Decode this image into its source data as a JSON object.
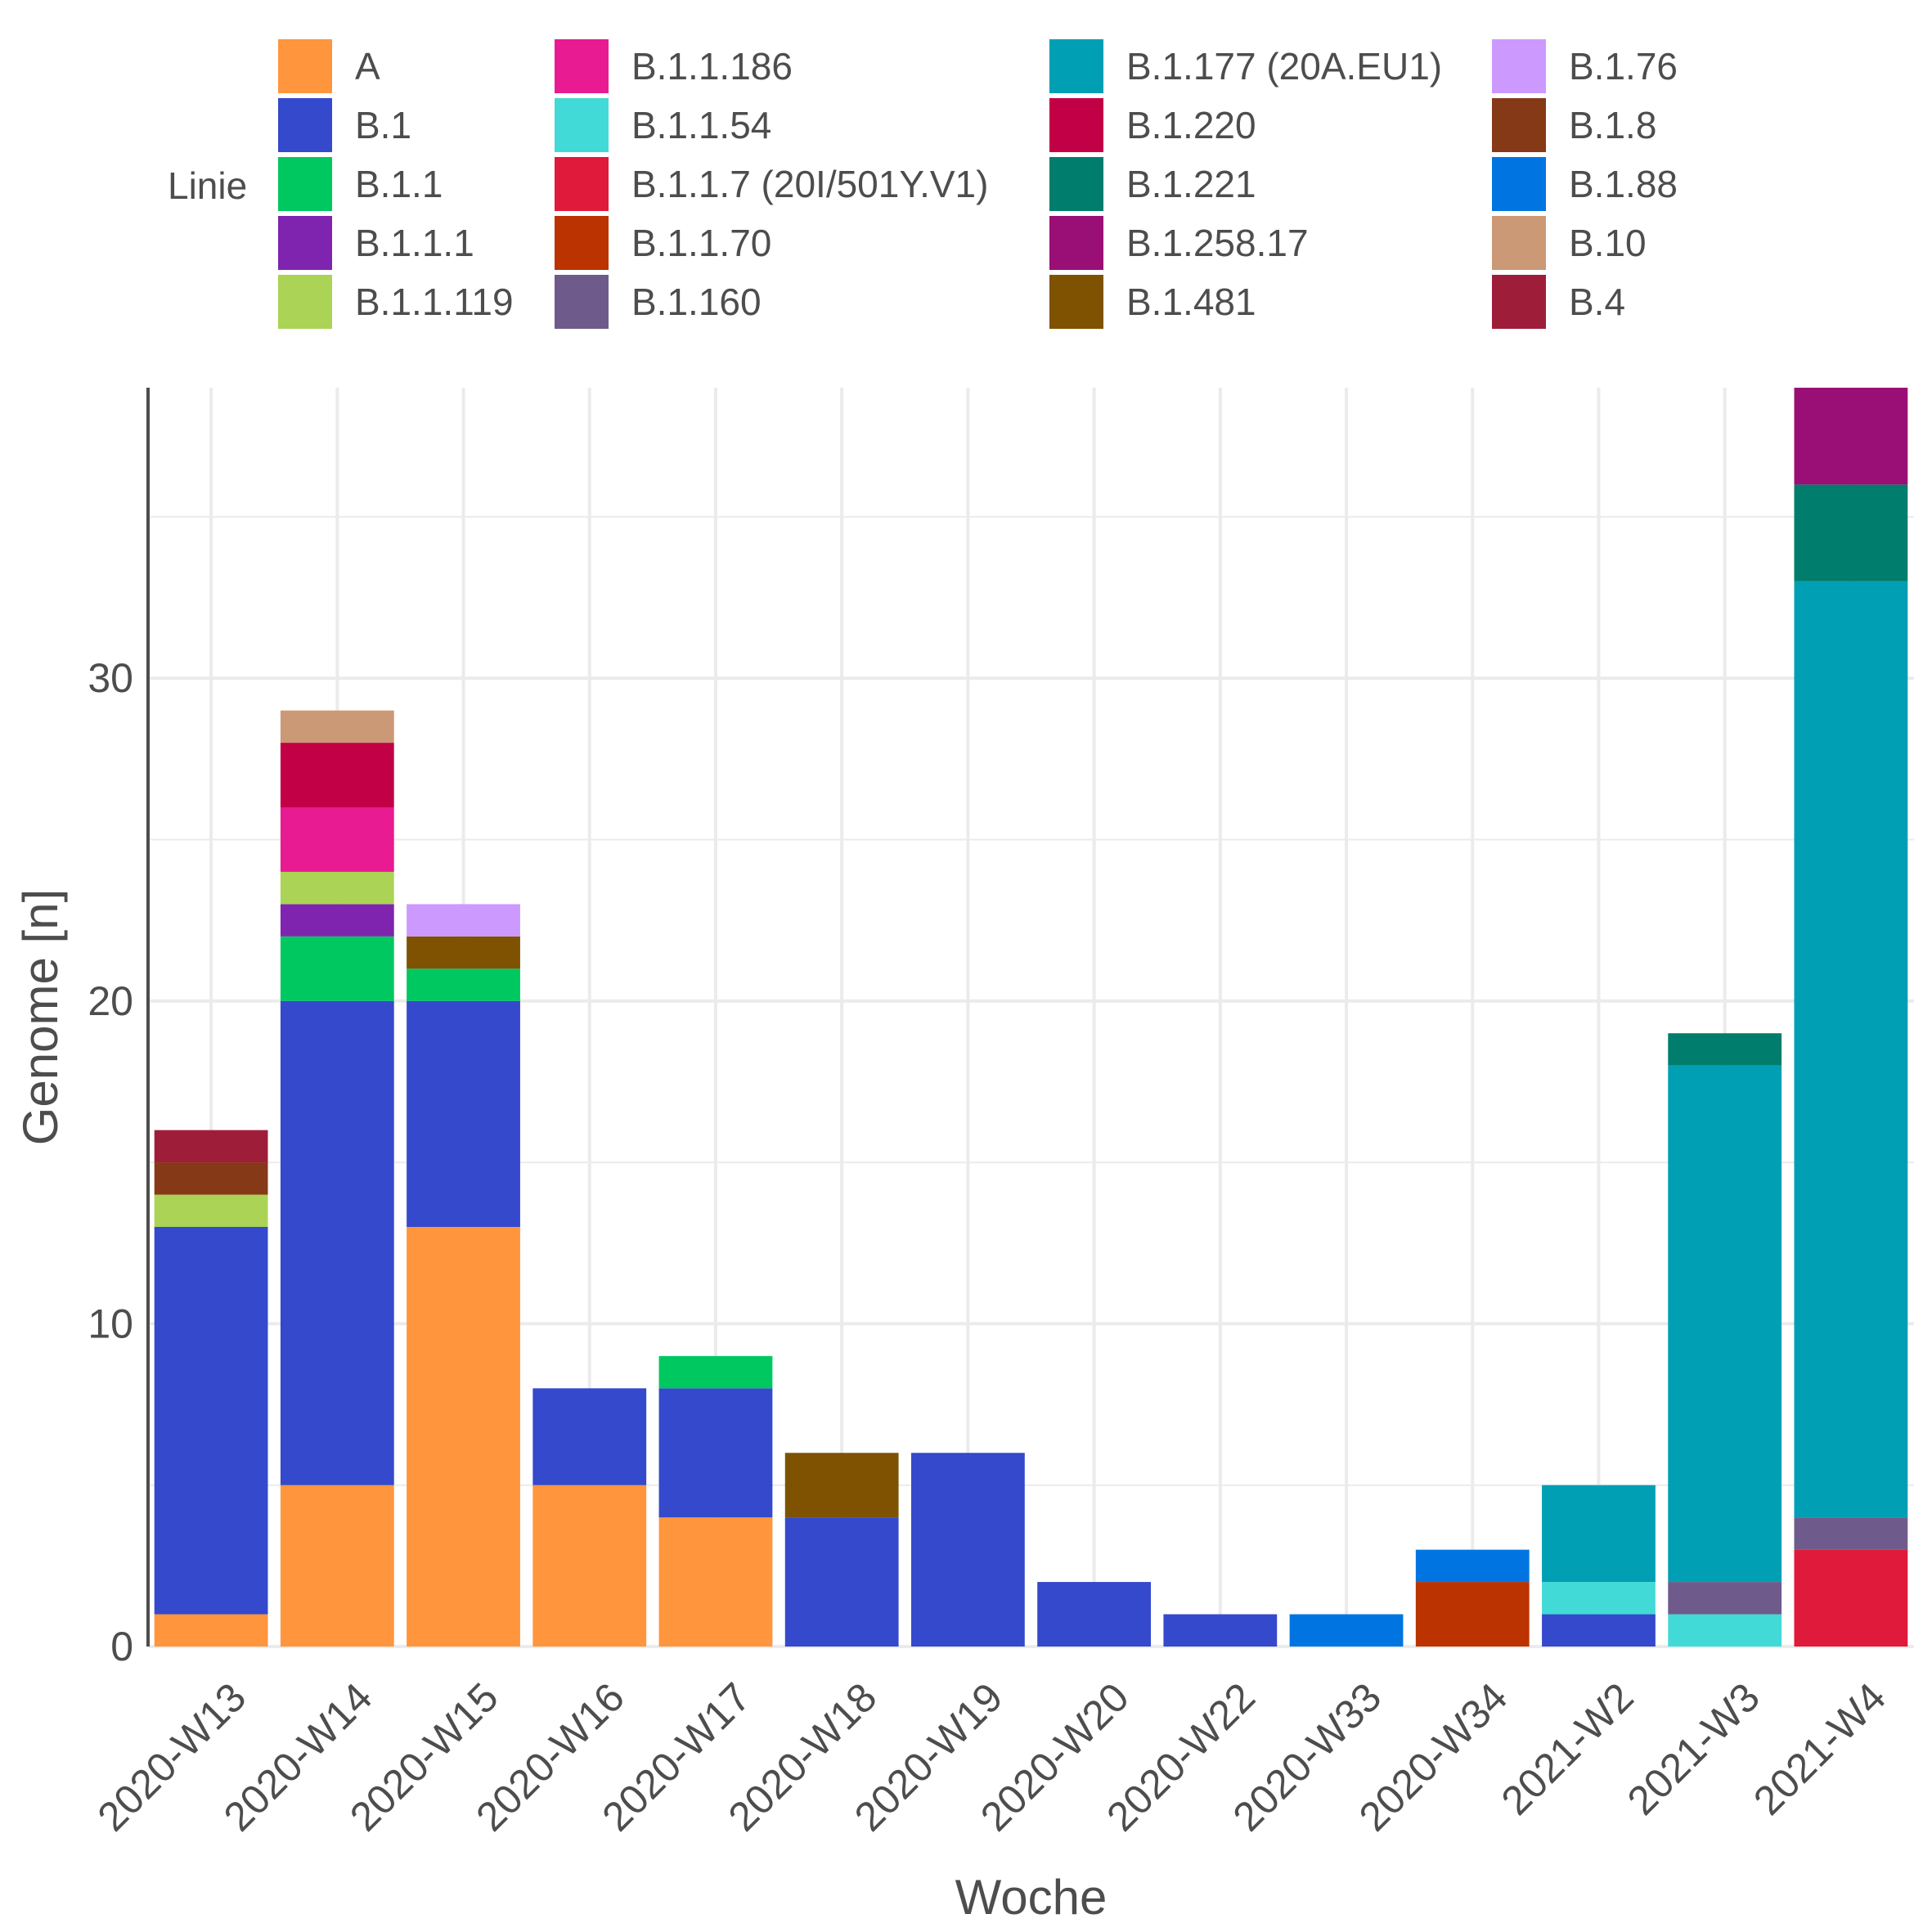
{
  "chart_data": {
    "type": "bar",
    "stacked": true,
    "title": "",
    "xlabel": "Woche",
    "ylabel": "Genome [n]",
    "ylim": [
      0,
      39
    ],
    "yticks": [
      0,
      10,
      20,
      30
    ],
    "grid": true,
    "legend": {
      "title": "Linie",
      "position": "top"
    },
    "categories": [
      "2020-W13",
      "2020-W14",
      "2020-W15",
      "2020-W16",
      "2020-W17",
      "2020-W18",
      "2020-W19",
      "2020-W20",
      "2020-W22",
      "2020-W33",
      "2020-W34",
      "2021-W2",
      "2021-W3",
      "2021-W4"
    ],
    "series": [
      {
        "name": "A",
        "color": "#FF953C",
        "values": [
          1,
          5,
          13,
          5,
          4,
          0,
          0,
          0,
          0,
          0,
          0,
          0,
          0,
          0
        ]
      },
      {
        "name": "B.1",
        "color": "#3449CC",
        "values": [
          12,
          15,
          7,
          3,
          4,
          4,
          6,
          2,
          1,
          0,
          0,
          1,
          0,
          0
        ]
      },
      {
        "name": "B.1.1",
        "color": "#00C860",
        "values": [
          0,
          2,
          1,
          0,
          1,
          0,
          0,
          0,
          0,
          0,
          0,
          0,
          0,
          0
        ]
      },
      {
        "name": "B.1.1.1",
        "color": "#7F24AE",
        "values": [
          0,
          1,
          0,
          0,
          0,
          0,
          0,
          0,
          0,
          0,
          0,
          0,
          0,
          0
        ]
      },
      {
        "name": "B.1.1.119",
        "color": "#ABD356",
        "values": [
          1,
          1,
          0,
          0,
          0,
          0,
          0,
          0,
          0,
          0,
          0,
          0,
          0,
          0
        ]
      },
      {
        "name": "B.1.1.186",
        "color": "#E81B92",
        "values": [
          0,
          2,
          0,
          0,
          0,
          0,
          0,
          0,
          0,
          0,
          0,
          0,
          0,
          0
        ]
      },
      {
        "name": "B.1.1.54",
        "color": "#42DAD6",
        "values": [
          0,
          0,
          0,
          0,
          0,
          0,
          0,
          0,
          0,
          0,
          0,
          1,
          1,
          0
        ]
      },
      {
        "name": "B.1.1.7 (20I/501Y.V1)",
        "color": "#DF1A3A",
        "values": [
          0,
          0,
          0,
          0,
          0,
          0,
          0,
          0,
          0,
          0,
          0,
          0,
          0,
          3
        ]
      },
      {
        "name": "B.1.1.70",
        "color": "#BB3300",
        "values": [
          0,
          0,
          0,
          0,
          0,
          0,
          0,
          0,
          0,
          0,
          2,
          0,
          0,
          0
        ]
      },
      {
        "name": "B.1.160",
        "color": "#6F5B8B",
        "values": [
          0,
          0,
          0,
          0,
          0,
          0,
          0,
          0,
          0,
          0,
          0,
          0,
          1,
          1
        ]
      },
      {
        "name": "B.1.177 (20A.EU1)",
        "color": "#009FB3",
        "values": [
          0,
          0,
          0,
          0,
          0,
          0,
          0,
          0,
          0,
          0,
          0,
          3,
          16,
          29
        ]
      },
      {
        "name": "B.1.220",
        "color": "#C20046",
        "values": [
          0,
          2,
          0,
          0,
          0,
          0,
          0,
          0,
          0,
          0,
          0,
          0,
          0,
          0
        ]
      },
      {
        "name": "B.1.221",
        "color": "#007D6D",
        "values": [
          0,
          0,
          0,
          0,
          0,
          0,
          0,
          0,
          0,
          0,
          0,
          0,
          1,
          3
        ]
      },
      {
        "name": "B.1.258.17",
        "color": "#9A0F76",
        "values": [
          0,
          0,
          0,
          0,
          0,
          0,
          0,
          0,
          0,
          0,
          0,
          0,
          0,
          3
        ]
      },
      {
        "name": "B.1.481",
        "color": "#7E5200",
        "values": [
          0,
          0,
          1,
          0,
          0,
          2,
          0,
          0,
          0,
          0,
          0,
          0,
          0,
          0
        ]
      },
      {
        "name": "B.1.76",
        "color": "#CC99FF",
        "values": [
          0,
          0,
          1,
          0,
          0,
          0,
          0,
          0,
          0,
          0,
          0,
          0,
          0,
          0
        ]
      },
      {
        "name": "B.1.8",
        "color": "#863916",
        "values": [
          1,
          0,
          0,
          0,
          0,
          0,
          0,
          0,
          0,
          0,
          0,
          0,
          0,
          0
        ]
      },
      {
        "name": "B.1.88",
        "color": "#0075E2",
        "values": [
          0,
          0,
          0,
          0,
          0,
          0,
          0,
          0,
          0,
          1,
          1,
          0,
          0,
          0
        ]
      },
      {
        "name": "B.10",
        "color": "#CB9975",
        "values": [
          0,
          1,
          0,
          0,
          0,
          0,
          0,
          0,
          0,
          0,
          0,
          0,
          0,
          0
        ]
      },
      {
        "name": "B.4",
        "color": "#9E1E3A",
        "values": [
          1,
          0,
          0,
          0,
          0,
          0,
          0,
          0,
          0,
          0,
          0,
          0,
          0,
          0
        ]
      }
    ]
  }
}
